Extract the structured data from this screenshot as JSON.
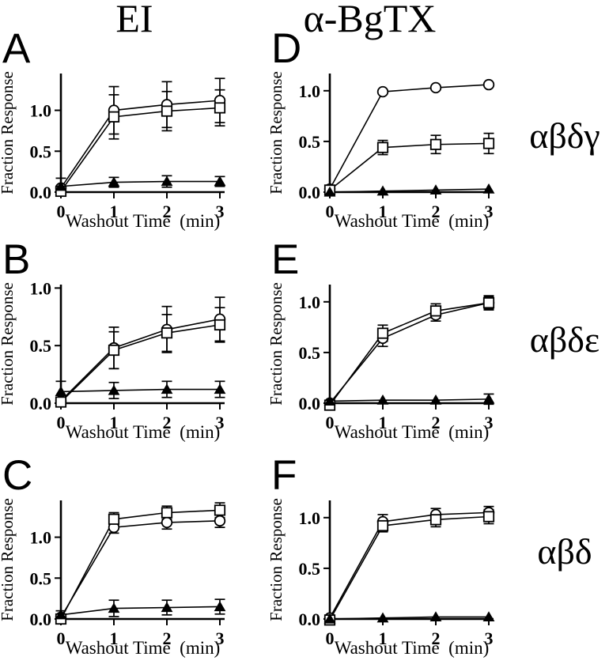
{
  "figure": {
    "column_titles": [
      "EI",
      "α-BgTX"
    ],
    "row_labels": [
      "αβδγ",
      "αβδε",
      "αβδ"
    ],
    "ink_color": "#000000",
    "background_color": "#ffffff"
  },
  "chart_data": [
    {
      "letter": "A",
      "type": "line",
      "column_title": "EI",
      "row_label": "αβδγ",
      "xlabel": "Washout Time  (min)",
      "ylabel": "Fraction Response",
      "x": [
        0,
        1,
        2,
        3
      ],
      "xticklabels": [
        "0",
        "1",
        "2",
        "3"
      ],
      "yticks": [
        0.0,
        0.5,
        1.0
      ],
      "yticklabels": [
        "0.0",
        "0.5",
        "1.0"
      ],
      "ylim": [
        0,
        1.45
      ],
      "grid": false,
      "legend": null,
      "series": [
        {
          "name": "open-circle",
          "marker": "circle",
          "values": [
            0.05,
            1.0,
            1.07,
            1.12
          ],
          "errors": [
            0.03,
            0.29,
            0.28,
            0.27
          ]
        },
        {
          "name": "open-square",
          "marker": "square",
          "values": [
            0.01,
            0.92,
            0.99,
            1.03
          ],
          "errors": [
            0.03,
            0.27,
            0.24,
            0.22
          ]
        },
        {
          "name": "filled-triangle",
          "marker": "triangle",
          "values": [
            0.07,
            0.12,
            0.13,
            0.13
          ],
          "errors": [
            0.1,
            0.06,
            0.07,
            0.06
          ]
        }
      ]
    },
    {
      "letter": "D",
      "type": "line",
      "column_title": "α-BgTX",
      "row_label": "αβδγ",
      "xlabel": "Washout Time  (min)",
      "ylabel": "Fraction Response",
      "x": [
        0,
        1,
        2,
        3
      ],
      "xticklabels": [
        "0",
        "1",
        "2",
        "3"
      ],
      "yticks": [
        0.0,
        0.5,
        1.0
      ],
      "yticklabels": [
        "0.0",
        "0.5",
        "1.0"
      ],
      "ylim": [
        0,
        1.17
      ],
      "grid": false,
      "legend": null,
      "series": [
        {
          "name": "open-circle",
          "marker": "circle",
          "values": [
            0.03,
            0.99,
            1.03,
            1.06
          ],
          "errors": [
            0.02,
            0.02,
            0.02,
            0.02
          ]
        },
        {
          "name": "open-square",
          "marker": "square",
          "values": [
            0.02,
            0.44,
            0.47,
            0.48
          ],
          "errors": [
            0.03,
            0.07,
            0.09,
            0.1
          ]
        },
        {
          "name": "filled-triangle",
          "marker": "triangle",
          "values": [
            0.0,
            0.01,
            0.02,
            0.03
          ],
          "errors": [
            0.01,
            0.01,
            0.01,
            0.01
          ]
        }
      ]
    },
    {
      "letter": "B",
      "type": "line",
      "column_title": "EI",
      "row_label": "αβδε",
      "xlabel": "Washout Time  (min)",
      "ylabel": "Fraction Response",
      "x": [
        0,
        1,
        2,
        3
      ],
      "xticklabels": [
        "0",
        "1",
        "2",
        "3"
      ],
      "yticks": [
        0.0,
        0.5,
        1.0
      ],
      "yticklabels": [
        "0.0",
        "0.5",
        "1.0"
      ],
      "ylim": [
        0,
        1.03
      ],
      "grid": false,
      "legend": null,
      "series": [
        {
          "name": "open-circle",
          "marker": "circle",
          "values": [
            0.02,
            0.48,
            0.64,
            0.73
          ],
          "errors": [
            0.03,
            0.18,
            0.2,
            0.19
          ]
        },
        {
          "name": "open-square",
          "marker": "square",
          "values": [
            0.01,
            0.46,
            0.61,
            0.68
          ],
          "errors": [
            0.03,
            0.16,
            0.16,
            0.15
          ]
        },
        {
          "name": "filled-triangle",
          "marker": "triangle",
          "values": [
            0.1,
            0.11,
            0.12,
            0.12
          ],
          "errors": [
            0.09,
            0.07,
            0.07,
            0.07
          ]
        }
      ]
    },
    {
      "letter": "E",
      "type": "line",
      "column_title": "α-BgTX",
      "row_label": "αβδε",
      "xlabel": "Washout Time  (min)",
      "ylabel": "Fraction Response",
      "x": [
        0,
        1,
        2,
        3
      ],
      "xticklabels": [
        "0",
        "1",
        "2",
        "3"
      ],
      "yticks": [
        0.0,
        0.5,
        1.0
      ],
      "yticklabels": [
        "0.0",
        "0.5",
        "1.0"
      ],
      "ylim": [
        0,
        1.17
      ],
      "grid": false,
      "legend": null,
      "series": [
        {
          "name": "open-circle",
          "marker": "circle",
          "values": [
            0.0,
            0.64,
            0.87,
            0.99
          ],
          "errors": [
            0.02,
            0.08,
            0.06,
            0.06
          ]
        },
        {
          "name": "open-square",
          "marker": "square",
          "values": [
            -0.02,
            0.69,
            0.91,
            0.99
          ],
          "errors": [
            0.02,
            0.08,
            0.07,
            0.07
          ]
        },
        {
          "name": "filled-triangle",
          "marker": "triangle",
          "values": [
            0.02,
            0.03,
            0.03,
            0.04
          ],
          "errors": [
            0.02,
            0.02,
            0.02,
            0.05
          ]
        }
      ]
    },
    {
      "letter": "C",
      "type": "line",
      "column_title": "EI",
      "row_label": "αβδ",
      "xlabel": "Washout Time  (min)",
      "ylabel": "Fraction Response",
      "x": [
        0,
        1,
        2,
        3
      ],
      "xticklabels": [
        "0",
        "1",
        "2",
        "3"
      ],
      "yticks": [
        0.0,
        0.5,
        1.0
      ],
      "yticklabels": [
        "0.0",
        "0.5",
        "1.0"
      ],
      "ylim": [
        0,
        1.45
      ],
      "grid": false,
      "legend": null,
      "series": [
        {
          "name": "open-circle",
          "marker": "circle",
          "values": [
            0.02,
            1.12,
            1.18,
            1.2
          ],
          "errors": [
            0.03,
            0.07,
            0.08,
            0.08
          ]
        },
        {
          "name": "open-square",
          "marker": "square",
          "values": [
            0.0,
            1.22,
            1.3,
            1.33
          ],
          "errors": [
            0.03,
            0.08,
            0.08,
            0.09
          ]
        },
        {
          "name": "filled-triangle",
          "marker": "triangle",
          "values": [
            0.05,
            0.13,
            0.14,
            0.15
          ],
          "errors": [
            0.05,
            0.1,
            0.09,
            0.09
          ]
        }
      ]
    },
    {
      "letter": "F",
      "type": "line",
      "column_title": "α-BgTX",
      "row_label": "αβδ",
      "xlabel": "Washout Time  (min)",
      "ylabel": "Fraction Response",
      "x": [
        0,
        1,
        2,
        3
      ],
      "xticklabels": [
        "0",
        "1",
        "2",
        "3"
      ],
      "yticks": [
        0.0,
        0.5,
        1.0
      ],
      "yticklabels": [
        "0.0",
        "0.5",
        "1.0"
      ],
      "ylim": [
        0,
        1.17
      ],
      "grid": false,
      "legend": null,
      "series": [
        {
          "name": "open-circle",
          "marker": "circle",
          "values": [
            0.01,
            0.96,
            1.03,
            1.05
          ],
          "errors": [
            0.02,
            0.07,
            0.06,
            0.06
          ]
        },
        {
          "name": "open-square",
          "marker": "square",
          "values": [
            -0.01,
            0.92,
            0.98,
            1.01
          ],
          "errors": [
            0.02,
            0.06,
            0.07,
            0.07
          ]
        },
        {
          "name": "filled-triangle",
          "marker": "triangle",
          "values": [
            0.0,
            0.01,
            0.02,
            0.02
          ],
          "errors": [
            0.01,
            0.01,
            0.01,
            0.01
          ]
        }
      ]
    }
  ]
}
